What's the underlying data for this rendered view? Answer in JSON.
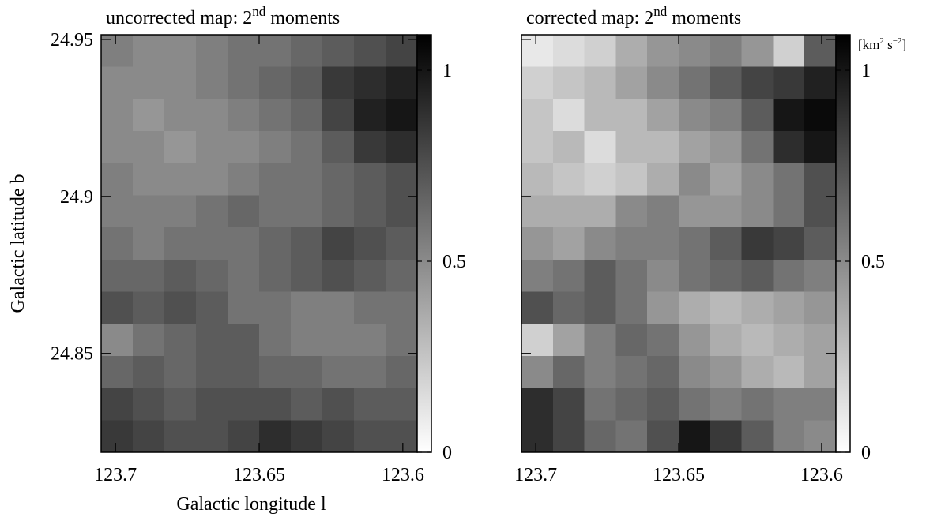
{
  "chart_data": [
    {
      "type": "heatmap",
      "title": "uncorrected map: 2",
      "title_sup": "nd",
      "title_end": " moments",
      "xlabel": "Galactic longitude l",
      "ylabel": "Galactic latitude b",
      "xlim": [
        123.705,
        123.595
      ],
      "xticks": [
        123.7,
        123.65,
        123.6
      ],
      "ylim": [
        24.8185,
        24.9515
      ],
      "yticks": [
        24.85,
        24.9,
        24.95
      ],
      "clim": [
        0,
        1.093
      ],
      "cticks": [
        0,
        0.5,
        1
      ],
      "z": [
        [
          0.55,
          0.5,
          0.5,
          0.55,
          0.6,
          0.6,
          0.65,
          0.7,
          0.75,
          0.8
        ],
        [
          0.5,
          0.5,
          0.5,
          0.55,
          0.6,
          0.65,
          0.7,
          0.85,
          0.9,
          0.95
        ],
        [
          0.5,
          0.45,
          0.5,
          0.5,
          0.55,
          0.6,
          0.65,
          0.8,
          0.95,
          1.0
        ],
        [
          0.5,
          0.5,
          0.45,
          0.5,
          0.5,
          0.55,
          0.6,
          0.7,
          0.85,
          0.9
        ],
        [
          0.55,
          0.5,
          0.5,
          0.5,
          0.55,
          0.6,
          0.6,
          0.65,
          0.7,
          0.75
        ],
        [
          0.55,
          0.55,
          0.55,
          0.6,
          0.65,
          0.6,
          0.6,
          0.65,
          0.7,
          0.75
        ],
        [
          0.6,
          0.55,
          0.6,
          0.6,
          0.6,
          0.65,
          0.7,
          0.8,
          0.75,
          0.7
        ],
        [
          0.65,
          0.65,
          0.7,
          0.65,
          0.6,
          0.65,
          0.7,
          0.75,
          0.7,
          0.65
        ],
        [
          0.75,
          0.7,
          0.75,
          0.7,
          0.6,
          0.6,
          0.55,
          0.55,
          0.6,
          0.6
        ],
        [
          0.5,
          0.6,
          0.65,
          0.7,
          0.7,
          0.6,
          0.55,
          0.55,
          0.55,
          0.6
        ],
        [
          0.65,
          0.7,
          0.65,
          0.7,
          0.7,
          0.65,
          0.65,
          0.6,
          0.6,
          0.65
        ],
        [
          0.8,
          0.75,
          0.7,
          0.75,
          0.75,
          0.75,
          0.7,
          0.75,
          0.7,
          0.7
        ],
        [
          0.85,
          0.8,
          0.75,
          0.75,
          0.8,
          0.9,
          0.85,
          0.8,
          0.75,
          0.75
        ]
      ]
    },
    {
      "type": "heatmap",
      "title": "corrected map: 2",
      "title_sup": "nd",
      "title_end": " moments",
      "colorbar_label": [
        "[km",
        "2",
        " s",
        "−2",
        "]"
      ],
      "xlim": [
        123.705,
        123.595
      ],
      "xticks": [
        123.7,
        123.65,
        123.6
      ],
      "ylim": [
        24.8185,
        24.9515
      ],
      "clim": [
        0,
        1.093
      ],
      "cticks": [
        0,
        0.5,
        1
      ],
      "z": [
        [
          0.1,
          0.15,
          0.2,
          0.35,
          0.45,
          0.5,
          0.55,
          0.45,
          0.2,
          0.7
        ],
        [
          0.2,
          0.25,
          0.3,
          0.4,
          0.5,
          0.6,
          0.7,
          0.8,
          0.85,
          0.95
        ],
        [
          0.25,
          0.15,
          0.3,
          0.3,
          0.4,
          0.5,
          0.55,
          0.7,
          1.0,
          1.05
        ],
        [
          0.25,
          0.3,
          0.15,
          0.3,
          0.3,
          0.4,
          0.45,
          0.6,
          0.9,
          1.0
        ],
        [
          0.3,
          0.25,
          0.2,
          0.25,
          0.35,
          0.5,
          0.4,
          0.5,
          0.6,
          0.75
        ],
        [
          0.35,
          0.35,
          0.35,
          0.5,
          0.55,
          0.45,
          0.45,
          0.5,
          0.6,
          0.75
        ],
        [
          0.45,
          0.4,
          0.5,
          0.55,
          0.55,
          0.6,
          0.7,
          0.85,
          0.8,
          0.7
        ],
        [
          0.55,
          0.6,
          0.7,
          0.6,
          0.5,
          0.6,
          0.65,
          0.7,
          0.6,
          0.55
        ],
        [
          0.75,
          0.65,
          0.7,
          0.6,
          0.45,
          0.35,
          0.3,
          0.35,
          0.4,
          0.45
        ],
        [
          0.2,
          0.4,
          0.55,
          0.65,
          0.6,
          0.45,
          0.35,
          0.3,
          0.35,
          0.4
        ],
        [
          0.5,
          0.65,
          0.55,
          0.6,
          0.65,
          0.5,
          0.45,
          0.35,
          0.3,
          0.4
        ],
        [
          0.9,
          0.8,
          0.6,
          0.65,
          0.7,
          0.6,
          0.55,
          0.6,
          0.55,
          0.55
        ],
        [
          0.9,
          0.8,
          0.65,
          0.6,
          0.75,
          1.0,
          0.85,
          0.7,
          0.55,
          0.5
        ]
      ]
    }
  ]
}
